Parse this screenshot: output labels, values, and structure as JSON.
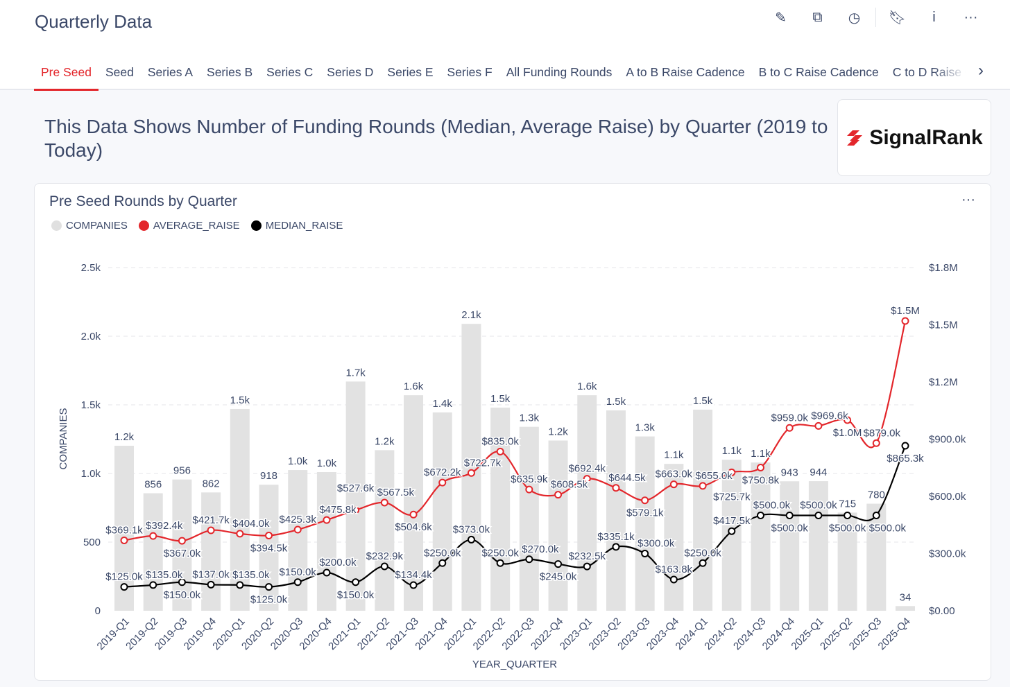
{
  "header": {
    "title": "Quarterly Data",
    "actions": [
      "pencil-icon",
      "external-link-icon",
      "clock-icon",
      "bookmark-icon",
      "info-icon",
      "more-icon"
    ]
  },
  "tabs": [
    "Pre Seed",
    "Seed",
    "Series A",
    "Series B",
    "Series C",
    "Series D",
    "Series E",
    "Series F",
    "All Funding Rounds",
    "A to B Raise Cadence",
    "B to C Raise Cadence",
    "C to D Raise Cadence"
  ],
  "active_tab": "Pre Seed",
  "heading": "This Data Shows Number of Funding Rounds (Median, Average Raise) by Quarter (2019 to Today)",
  "logo": {
    "text": "SignalRank"
  },
  "card": {
    "title": "Pre Seed Rounds by Quarter",
    "menu": "···",
    "legend": [
      {
        "label": "COMPANIES",
        "color": "#e0e0e0"
      },
      {
        "label": "AVERAGE_RAISE",
        "color": "#e3262b"
      },
      {
        "label": "MEDIAN_RAISE",
        "color": "#000000"
      }
    ]
  },
  "chart_data": {
    "type": "bar",
    "title": "Pre Seed Rounds by Quarter",
    "xlabel": "YEAR_QUARTER",
    "ylabel": "COMPANIES",
    "ylim": [
      0,
      2500
    ],
    "y2lim": [
      0,
      1800000
    ],
    "yticks": [
      "0",
      "500",
      "1.0k",
      "1.5k",
      "2.0k",
      "2.5k"
    ],
    "y2ticks": [
      "$0.00",
      "$300.0k",
      "$600.0k",
      "$900.0k",
      "$1.2M",
      "$1.5M",
      "$1.8M"
    ],
    "categories": [
      "2019-Q1",
      "2019-Q2",
      "2019-Q3",
      "2019-Q4",
      "2020-Q1",
      "2020-Q2",
      "2020-Q3",
      "2020-Q4",
      "2021-Q1",
      "2021-Q2",
      "2021-Q3",
      "2021-Q4",
      "2022-Q1",
      "2022-Q2",
      "2022-Q3",
      "2022-Q4",
      "2023-Q1",
      "2023-Q2",
      "2023-Q3",
      "2023-Q4",
      "2024-Q1",
      "2024-Q2",
      "2024-Q3",
      "2024-Q4",
      "2025-Q1",
      "2025-Q2",
      "2025-Q3",
      "2025-Q4"
    ],
    "series": [
      {
        "name": "COMPANIES",
        "type": "bar",
        "axis": "left",
        "color": "#e2e2e2",
        "values": [
          1202,
          856,
          956,
          862,
          1470,
          918,
          1025,
          1010,
          1670,
          1170,
          1570,
          1445,
          2090,
          1480,
          1340,
          1240,
          1570,
          1460,
          1270,
          1070,
          1465,
          1100,
          1080,
          943,
          944,
          715,
          780,
          34
        ],
        "labels": [
          "1.2k",
          "856",
          "956",
          "862",
          "1.5k",
          "918",
          "1.0k",
          "1.0k",
          "1.7k",
          "1.2k",
          "1.6k",
          "1.4k",
          "2.1k",
          "1.5k",
          "1.3k",
          "1.2k",
          "1.6k",
          "1.5k",
          "1.3k",
          "1.1k",
          "1.5k",
          "1.1k",
          "1.1k",
          "943",
          "944",
          "715",
          "780",
          "34"
        ]
      },
      {
        "name": "AVERAGE_RAISE",
        "type": "line",
        "axis": "right",
        "color": "#e3262b",
        "values": [
          369100,
          392400,
          367000,
          421700,
          404000,
          394500,
          425300,
          475800,
          527600,
          567500,
          504600,
          672200,
          722700,
          835000,
          635900,
          608500,
          692400,
          644500,
          579100,
          663000,
          655000,
          725700,
          750800,
          959000,
          969600,
          1000000,
          879000,
          1520000
        ],
        "labels": [
          "$369.1k",
          "$392.4k",
          "$367.0k",
          "$421.7k",
          "$404.0k",
          "$394.5k",
          "$425.3k",
          "$475.8k",
          "$527.6k",
          "$567.5k",
          "$504.6k",
          "$672.2k",
          "$722.7k",
          "$835.0k",
          "$635.9k",
          "$608.5k",
          "$692.4k",
          "$644.5k",
          "$579.1k",
          "$663.0k",
          "$655.0k",
          "$725.7k",
          "$750.8k",
          "$959.0k",
          "$969.6k",
          "$1.0M",
          "$879.0k",
          "$1.5M"
        ]
      },
      {
        "name": "MEDIAN_RAISE",
        "type": "line",
        "axis": "right",
        "color": "#000000",
        "values": [
          125000,
          135000,
          150000,
          137000,
          135000,
          125000,
          150000,
          200000,
          150000,
          232900,
          134400,
          250000,
          373000,
          250000,
          270000,
          245000,
          232500,
          335100,
          300000,
          163800,
          250000,
          417500,
          500000,
          500000,
          500000,
          500000,
          500000,
          865300
        ],
        "labels": [
          "$125.0k",
          "$135.0k",
          "$150.0k",
          "$137.0k",
          "$135.0k",
          "$125.0k",
          "$150.0k",
          "$200.0k",
          "$150.0k",
          "$232.9k",
          "$134.4k",
          "$250.0k",
          "$373.0k",
          "$250.0k",
          "$270.0k",
          "$245.0k",
          "$232.5k",
          "$335.1k",
          "$300.0k",
          "$163.8k",
          "$250.0k",
          "$417.5k",
          "$500.0k",
          "$500.0k",
          "$500.0k",
          "$500.0k",
          "$500.0k",
          "$865.3k"
        ]
      }
    ],
    "grid": true,
    "legend": "top-left"
  }
}
